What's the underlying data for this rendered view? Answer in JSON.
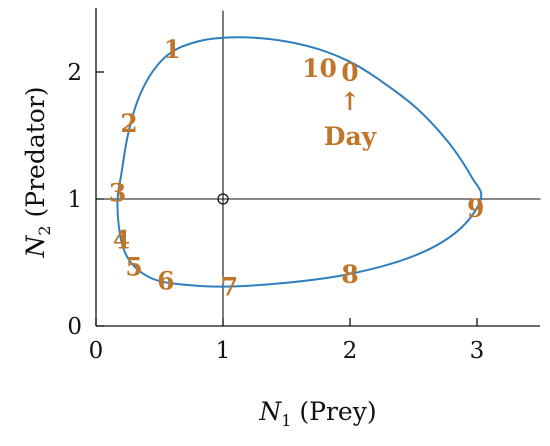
{
  "chart_data": {
    "type": "line",
    "title": "",
    "xlabel": {
      "var": "N",
      "sub": "1",
      "text": "(Prey)"
    },
    "ylabel": {
      "var": "N",
      "sub": "2",
      "text": "(Predator)"
    },
    "xlim": [
      0,
      3.5
    ],
    "ylim": [
      0,
      2.5
    ],
    "xticks": [
      "0",
      "1",
      "2",
      "3"
    ],
    "yticks": [
      "0",
      "1",
      "2"
    ],
    "grid": false,
    "equilibrium": {
      "x": 1,
      "y": 1
    },
    "orbit": [
      [
        3.03,
        1.0
      ],
      [
        2.96,
        1.17
      ],
      [
        2.78,
        1.44
      ],
      [
        2.52,
        1.72
      ],
      [
        2.2,
        1.96
      ],
      [
        2.0,
        2.08
      ],
      [
        1.75,
        2.18
      ],
      [
        1.5,
        2.24
      ],
      [
        1.25,
        2.27
      ],
      [
        1.0,
        2.27
      ],
      [
        0.8,
        2.24
      ],
      [
        0.6,
        2.16
      ],
      [
        0.45,
        2.01
      ],
      [
        0.33,
        1.78
      ],
      [
        0.25,
        1.5
      ],
      [
        0.2,
        1.2
      ],
      [
        0.17,
        1.0
      ],
      [
        0.18,
        0.78
      ],
      [
        0.22,
        0.6
      ],
      [
        0.3,
        0.47
      ],
      [
        0.45,
        0.37
      ],
      [
        0.65,
        0.33
      ],
      [
        1.0,
        0.31
      ],
      [
        1.5,
        0.34
      ],
      [
        2.0,
        0.41
      ],
      [
        2.5,
        0.55
      ],
      [
        2.85,
        0.75
      ],
      [
        3.03,
        1.0
      ]
    ],
    "day_labels": [
      {
        "text": "0",
        "x": 2.0,
        "y": 2.0
      },
      {
        "text": "1",
        "x": 0.6,
        "y": 2.18
      },
      {
        "text": "2",
        "x": 0.26,
        "y": 1.6
      },
      {
        "text": "3",
        "x": 0.17,
        "y": 1.05
      },
      {
        "text": "4",
        "x": 0.2,
        "y": 0.68
      },
      {
        "text": "5",
        "x": 0.3,
        "y": 0.47
      },
      {
        "text": "6",
        "x": 0.55,
        "y": 0.36
      },
      {
        "text": "7",
        "x": 1.05,
        "y": 0.31
      },
      {
        "text": "8",
        "x": 2.0,
        "y": 0.41
      },
      {
        "text": "9",
        "x": 2.99,
        "y": 0.93
      },
      {
        "text": "10",
        "x": 1.76,
        "y": 2.03
      }
    ],
    "annotation": {
      "arrow": "↑",
      "text": "Day"
    },
    "colors": {
      "curve": "#2f7fbf",
      "labels": "#c0762a",
      "axes": "#111111"
    }
  }
}
